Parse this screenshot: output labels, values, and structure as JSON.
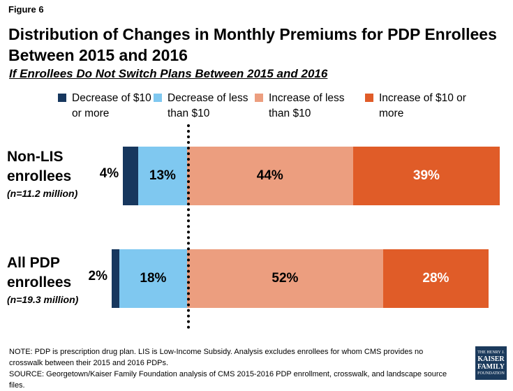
{
  "figure_label": "Figure 6",
  "chart_data": {
    "type": "bar",
    "orientation": "horizontal",
    "stacked": true,
    "title": "Distribution of Changes in Monthly Premiums for PDP Enrollees Between 2015 and 2016",
    "subtitle": "If Enrollees Do Not Switch Plans Between 2015 and 2016",
    "categories": [
      {
        "name": "Non-LIS enrollees",
        "n": "(n=11.2 million)"
      },
      {
        "name": "All PDP enrollees",
        "n": "(n=19.3 million)"
      }
    ],
    "series": [
      {
        "name": "Decrease of $10 or more",
        "color": "#17375e",
        "values": [
          4,
          2
        ],
        "labels": [
          "4%",
          "2%"
        ]
      },
      {
        "name": "Decrease of less than $10",
        "color": "#7fc8f0",
        "values": [
          13,
          18
        ],
        "labels": [
          "13%",
          "18%"
        ]
      },
      {
        "name": "Increase of less than $10",
        "color": "#ec9e7f",
        "values": [
          44,
          52
        ],
        "labels": [
          "44%",
          "52%"
        ]
      },
      {
        "name": "Increase of $10 or more",
        "color": "#e05c28",
        "values": [
          39,
          28
        ],
        "labels": [
          "39%",
          "28%"
        ]
      }
    ],
    "xlim": [
      0,
      100
    ],
    "divider": "dotted line separating decreases from increases"
  },
  "footer": {
    "note": "NOTE: PDP is prescription drug plan. LIS is Low-Income Subsidy. Analysis excludes enrollees for whom CMS provides no crosswalk between their 2015 and 2016 PDPs.",
    "source": "SOURCE: Georgetown/Kaiser Family Foundation analysis of CMS 2015-2016 PDP enrollment, crosswalk, and landscape source files."
  },
  "logo": {
    "line1": "THE HENRY J.",
    "line2": "KAISER",
    "line3": "FAMILY",
    "line4": "FOUNDATION"
  }
}
